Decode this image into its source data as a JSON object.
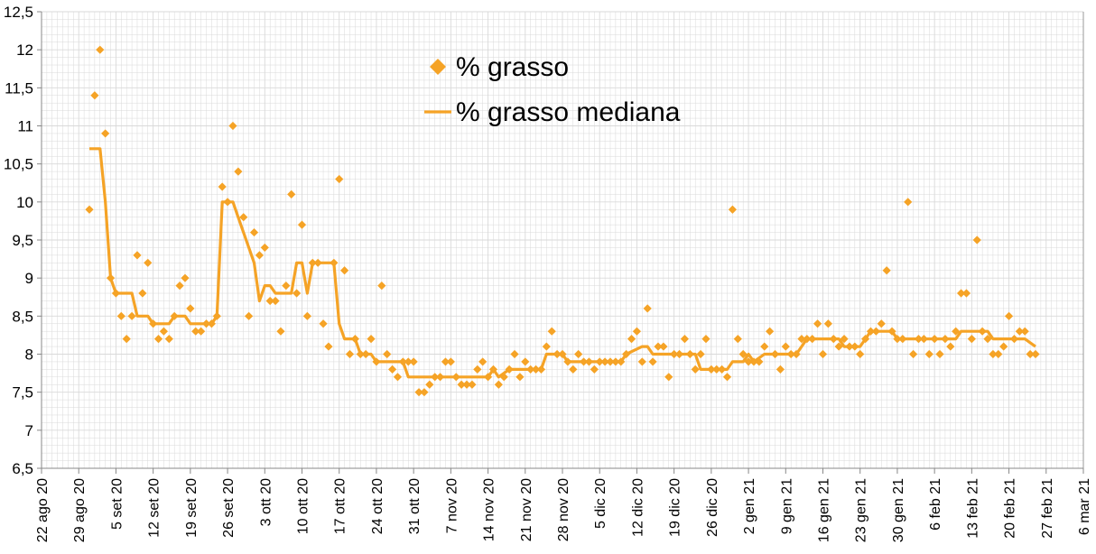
{
  "chart_data": {
    "type": "scatter",
    "x_axis": {
      "type": "date",
      "range": [
        "2020-08-22",
        "2021-03-06"
      ],
      "tick_labels": [
        "22 ago 20",
        "29 ago 20",
        "5 set 20",
        "12 set 20",
        "19 set 20",
        "26 set 20",
        "3 ott 20",
        "10 ott 20",
        "17 ott 20",
        "24 ott 20",
        "31 ott 20",
        "7 nov 20",
        "14 nov 20",
        "21 nov 20",
        "28 nov 20",
        "5 dic 20",
        "12 dic 20",
        "19 dic 20",
        "26 dic 20",
        "2 gen 21",
        "9 gen 21",
        "16 gen 21",
        "23 gen 21",
        "30 gen 21",
        "6 feb 21",
        "13 feb 21",
        "20 feb 21",
        "27 feb 21",
        "6 mar 21"
      ],
      "grid": true
    },
    "y_axis": {
      "range": [
        6.5,
        12.5
      ],
      "tick_labels": [
        "6,5",
        "7",
        "7,5",
        "8",
        "8,5",
        "9",
        "9,5",
        "10",
        "10,5",
        "11",
        "11,5",
        "12",
        "12,5"
      ],
      "grid": true
    },
    "legend": {
      "placement": "top-center",
      "entries": [
        "% grasso",
        "% grasso mediana"
      ]
    },
    "colors": {
      "marker": "#f5a326",
      "line": "#f5a326",
      "grid": "#d9d9d9",
      "axis": "#888888"
    },
    "series": [
      {
        "name": "% grasso",
        "kind": "markers",
        "points": [
          [
            "2020-08-31",
            9.9
          ],
          [
            "2020-09-01",
            11.4
          ],
          [
            "2020-09-02",
            12.0
          ],
          [
            "2020-09-03",
            10.9
          ],
          [
            "2020-09-04",
            9.0
          ],
          [
            "2020-09-05",
            8.8
          ],
          [
            "2020-09-06",
            8.5
          ],
          [
            "2020-09-07",
            8.2
          ],
          [
            "2020-09-08",
            8.5
          ],
          [
            "2020-09-09",
            9.3
          ],
          [
            "2020-09-10",
            8.8
          ],
          [
            "2020-09-11",
            9.2
          ],
          [
            "2020-09-12",
            8.4
          ],
          [
            "2020-09-13",
            8.2
          ],
          [
            "2020-09-14",
            8.3
          ],
          [
            "2020-09-15",
            8.2
          ],
          [
            "2020-09-16",
            8.5
          ],
          [
            "2020-09-17",
            8.9
          ],
          [
            "2020-09-18",
            9.0
          ],
          [
            "2020-09-19",
            8.6
          ],
          [
            "2020-09-20",
            8.3
          ],
          [
            "2020-09-21",
            8.3
          ],
          [
            "2020-09-22",
            8.4
          ],
          [
            "2020-09-23",
            8.4
          ],
          [
            "2020-09-24",
            8.5
          ],
          [
            "2020-09-25",
            10.2
          ],
          [
            "2020-09-26",
            10.0
          ],
          [
            "2020-09-27",
            11.0
          ],
          [
            "2020-09-28",
            10.4
          ],
          [
            "2020-09-29",
            9.8
          ],
          [
            "2020-09-30",
            8.5
          ],
          [
            "2020-10-01",
            9.6
          ],
          [
            "2020-10-02",
            9.3
          ],
          [
            "2020-10-03",
            9.4
          ],
          [
            "2020-10-04",
            8.7
          ],
          [
            "2020-10-05",
            8.7
          ],
          [
            "2020-10-06",
            8.3
          ],
          [
            "2020-10-07",
            8.9
          ],
          [
            "2020-10-08",
            10.1
          ],
          [
            "2020-10-09",
            8.8
          ],
          [
            "2020-10-10",
            9.7
          ],
          [
            "2020-10-11",
            8.5
          ],
          [
            "2020-10-12",
            9.2
          ],
          [
            "2020-10-13",
            9.2
          ],
          [
            "2020-10-14",
            8.4
          ],
          [
            "2020-10-15",
            8.1
          ],
          [
            "2020-10-16",
            9.2
          ],
          [
            "2020-10-17",
            10.3
          ],
          [
            "2020-10-18",
            9.1
          ],
          [
            "2020-10-19",
            8.0
          ],
          [
            "2020-10-20",
            8.2
          ],
          [
            "2020-10-21",
            8.0
          ],
          [
            "2020-10-22",
            8.0
          ],
          [
            "2020-10-23",
            8.2
          ],
          [
            "2020-10-24",
            7.9
          ],
          [
            "2020-10-25",
            8.9
          ],
          [
            "2020-10-26",
            8.0
          ],
          [
            "2020-10-27",
            7.8
          ],
          [
            "2020-10-28",
            7.7
          ],
          [
            "2020-10-29",
            7.9
          ],
          [
            "2020-10-30",
            7.9
          ],
          [
            "2020-10-31",
            7.9
          ],
          [
            "2020-11-01",
            7.5
          ],
          [
            "2020-11-02",
            7.5
          ],
          [
            "2020-11-03",
            7.6
          ],
          [
            "2020-11-04",
            7.7
          ],
          [
            "2020-11-05",
            7.7
          ],
          [
            "2020-11-06",
            7.9
          ],
          [
            "2020-11-07",
            7.9
          ],
          [
            "2020-11-08",
            7.7
          ],
          [
            "2020-11-09",
            7.6
          ],
          [
            "2020-11-10",
            7.6
          ],
          [
            "2020-11-11",
            7.6
          ],
          [
            "2020-11-12",
            7.8
          ],
          [
            "2020-11-13",
            7.9
          ],
          [
            "2020-11-14",
            7.7
          ],
          [
            "2020-11-15",
            7.8
          ],
          [
            "2020-11-16",
            7.6
          ],
          [
            "2020-11-17",
            7.7
          ],
          [
            "2020-11-18",
            7.8
          ],
          [
            "2020-11-19",
            8.0
          ],
          [
            "2020-11-20",
            7.7
          ],
          [
            "2020-11-21",
            7.9
          ],
          [
            "2020-11-22",
            7.8
          ],
          [
            "2020-11-23",
            7.8
          ],
          [
            "2020-11-24",
            7.8
          ],
          [
            "2020-11-25",
            8.1
          ],
          [
            "2020-11-26",
            8.3
          ],
          [
            "2020-11-27",
            8.0
          ],
          [
            "2020-11-28",
            8.0
          ],
          [
            "2020-11-29",
            7.9
          ],
          [
            "2020-11-30",
            7.8
          ],
          [
            "2020-12-01",
            8.0
          ],
          [
            "2020-12-02",
            7.9
          ],
          [
            "2020-12-03",
            7.9
          ],
          [
            "2020-12-04",
            7.8
          ],
          [
            "2020-12-05",
            7.9
          ],
          [
            "2020-12-06",
            7.9
          ],
          [
            "2020-12-07",
            7.9
          ],
          [
            "2020-12-08",
            7.9
          ],
          [
            "2020-12-09",
            7.9
          ],
          [
            "2020-12-10",
            8.0
          ],
          [
            "2020-12-11",
            8.2
          ],
          [
            "2020-12-12",
            8.3
          ],
          [
            "2020-12-13",
            7.9
          ],
          [
            "2020-12-14",
            8.6
          ],
          [
            "2020-12-15",
            7.9
          ],
          [
            "2020-12-16",
            8.1
          ],
          [
            "2020-12-17",
            8.1
          ],
          [
            "2020-12-18",
            7.7
          ],
          [
            "2020-12-19",
            8.0
          ],
          [
            "2020-12-20",
            8.0
          ],
          [
            "2020-12-21",
            8.2
          ],
          [
            "2020-12-22",
            8.0
          ],
          [
            "2020-12-23",
            7.8
          ],
          [
            "2020-12-24",
            8.0
          ],
          [
            "2020-12-25",
            8.2
          ],
          [
            "2020-12-26",
            7.8
          ],
          [
            "2020-12-27",
            7.8
          ],
          [
            "2020-12-28",
            7.8
          ],
          [
            "2020-12-29",
            7.7
          ],
          [
            "2020-12-30",
            9.9
          ],
          [
            "2020-12-31",
            8.2
          ],
          [
            "2021-01-01",
            8.0
          ],
          [
            "2021-01-02",
            7.9
          ],
          [
            "2021-01-03",
            7.9
          ],
          [
            "2021-01-04",
            7.9
          ],
          [
            "2021-01-05",
            8.1
          ],
          [
            "2021-01-06",
            8.3
          ],
          [
            "2021-01-07",
            8.0
          ],
          [
            "2021-01-08",
            7.8
          ],
          [
            "2021-01-09",
            8.1
          ],
          [
            "2021-01-10",
            8.0
          ],
          [
            "2021-01-11",
            8.0
          ],
          [
            "2021-01-12",
            8.2
          ],
          [
            "2021-01-13",
            8.2
          ],
          [
            "2021-01-14",
            8.2
          ],
          [
            "2021-01-15",
            8.4
          ],
          [
            "2021-01-16",
            8.0
          ],
          [
            "2021-01-17",
            8.4
          ],
          [
            "2021-01-18",
            8.2
          ],
          [
            "2021-01-19",
            8.1
          ],
          [
            "2021-01-20",
            8.2
          ],
          [
            "2021-01-21",
            8.1
          ],
          [
            "2021-01-22",
            8.1
          ],
          [
            "2021-01-23",
            8.0
          ],
          [
            "2021-01-24",
            8.2
          ],
          [
            "2021-01-25",
            8.3
          ],
          [
            "2021-01-26",
            8.3
          ],
          [
            "2021-01-27",
            8.4
          ],
          [
            "2021-01-28",
            9.1
          ],
          [
            "2021-01-29",
            8.3
          ],
          [
            "2021-01-30",
            8.2
          ],
          [
            "2021-01-31",
            8.2
          ],
          [
            "2021-02-01",
            10.0
          ],
          [
            "2021-02-02",
            8.0
          ],
          [
            "2021-02-03",
            8.2
          ],
          [
            "2021-02-04",
            8.2
          ],
          [
            "2021-02-05",
            8.0
          ],
          [
            "2021-02-06",
            8.2
          ],
          [
            "2021-02-07",
            8.0
          ],
          [
            "2021-02-08",
            8.2
          ],
          [
            "2021-02-09",
            8.1
          ],
          [
            "2021-02-10",
            8.3
          ],
          [
            "2021-02-11",
            8.8
          ],
          [
            "2021-02-12",
            8.8
          ],
          [
            "2021-02-13",
            8.2
          ],
          [
            "2021-02-14",
            9.5
          ],
          [
            "2021-02-15",
            8.3
          ],
          [
            "2021-02-16",
            8.2
          ],
          [
            "2021-02-17",
            8.0
          ],
          [
            "2021-02-18",
            8.0
          ],
          [
            "2021-02-19",
            8.1
          ],
          [
            "2021-02-20",
            8.5
          ],
          [
            "2021-02-21",
            8.2
          ],
          [
            "2021-02-22",
            8.3
          ],
          [
            "2021-02-23",
            8.3
          ],
          [
            "2021-02-24",
            8.0
          ],
          [
            "2021-02-25",
            8.0
          ]
        ]
      },
      {
        "name": "% grasso mediana",
        "kind": "line",
        "points": [
          [
            "2020-08-31",
            10.7
          ],
          [
            "2020-09-02",
            10.7
          ],
          [
            "2020-09-03",
            10.0
          ],
          [
            "2020-09-04",
            9.0
          ],
          [
            "2020-09-05",
            8.8
          ],
          [
            "2020-09-08",
            8.8
          ],
          [
            "2020-09-09",
            8.5
          ],
          [
            "2020-09-11",
            8.5
          ],
          [
            "2020-09-12",
            8.4
          ],
          [
            "2020-09-15",
            8.4
          ],
          [
            "2020-09-16",
            8.5
          ],
          [
            "2020-09-18",
            8.5
          ],
          [
            "2020-09-19",
            8.4
          ],
          [
            "2020-09-23",
            8.4
          ],
          [
            "2020-09-24",
            8.5
          ],
          [
            "2020-09-25",
            10.0
          ],
          [
            "2020-09-27",
            10.0
          ],
          [
            "2020-09-28",
            9.8
          ],
          [
            "2020-09-30",
            9.4
          ],
          [
            "2020-10-01",
            9.2
          ],
          [
            "2020-10-02",
            8.7
          ],
          [
            "2020-10-03",
            8.9
          ],
          [
            "2020-10-04",
            8.9
          ],
          [
            "2020-10-05",
            8.8
          ],
          [
            "2020-10-08",
            8.8
          ],
          [
            "2020-10-09",
            9.2
          ],
          [
            "2020-10-10",
            9.2
          ],
          [
            "2020-10-11",
            8.8
          ],
          [
            "2020-10-12",
            9.2
          ],
          [
            "2020-10-16",
            9.2
          ],
          [
            "2020-10-17",
            8.4
          ],
          [
            "2020-10-18",
            8.2
          ],
          [
            "2020-10-20",
            8.2
          ],
          [
            "2020-10-21",
            8.0
          ],
          [
            "2020-10-23",
            8.0
          ],
          [
            "2020-10-24",
            7.9
          ],
          [
            "2020-10-29",
            7.9
          ],
          [
            "2020-10-30",
            7.7
          ],
          [
            "2020-11-14",
            7.7
          ],
          [
            "2020-11-15",
            7.8
          ],
          [
            "2020-11-16",
            7.7
          ],
          [
            "2020-11-18",
            7.8
          ],
          [
            "2020-11-24",
            7.8
          ],
          [
            "2020-11-25",
            8.0
          ],
          [
            "2020-11-28",
            8.0
          ],
          [
            "2020-11-29",
            7.9
          ],
          [
            "2020-12-09",
            7.9
          ],
          [
            "2020-12-10",
            8.0
          ],
          [
            "2020-12-13",
            8.1
          ],
          [
            "2020-12-14",
            8.1
          ],
          [
            "2020-12-15",
            8.0
          ],
          [
            "2020-12-23",
            8.0
          ],
          [
            "2020-12-24",
            7.8
          ],
          [
            "2020-12-29",
            7.8
          ],
          [
            "2020-12-30",
            7.9
          ],
          [
            "2021-01-01",
            7.9
          ],
          [
            "2021-01-02",
            8.0
          ],
          [
            "2021-01-03",
            7.9
          ],
          [
            "2021-01-05",
            8.0
          ],
          [
            "2021-01-11",
            8.0
          ],
          [
            "2021-01-12",
            8.1
          ],
          [
            "2021-01-13",
            8.2
          ],
          [
            "2021-01-19",
            8.2
          ],
          [
            "2021-01-20",
            8.1
          ],
          [
            "2021-01-23",
            8.1
          ],
          [
            "2021-01-24",
            8.2
          ],
          [
            "2021-01-25",
            8.3
          ],
          [
            "2021-01-29",
            8.3
          ],
          [
            "2021-01-30",
            8.2
          ],
          [
            "2021-02-10",
            8.2
          ],
          [
            "2021-02-11",
            8.3
          ],
          [
            "2021-02-16",
            8.3
          ],
          [
            "2021-02-17",
            8.2
          ],
          [
            "2021-02-23",
            8.2
          ],
          [
            "2021-02-25",
            8.1
          ]
        ]
      }
    ]
  }
}
